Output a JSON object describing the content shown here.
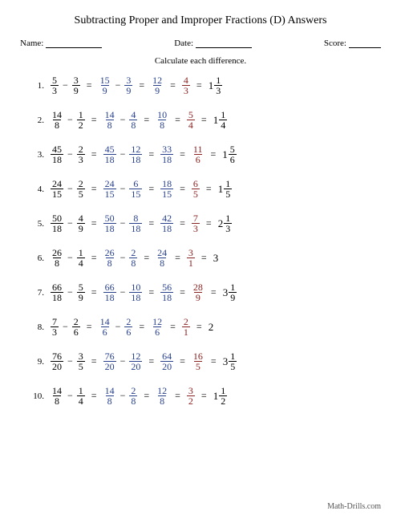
{
  "title": "Subtracting Proper and Improper Fractions (D) Answers",
  "header": {
    "name_label": "Name:",
    "date_label": "Date:",
    "score_label": "Score:"
  },
  "instruction": "Calculate each difference.",
  "footer": "Math-Drills.com",
  "colors": {
    "black": "#000000",
    "blue": "#27408b",
    "red": "#8b2222",
    "background": "#ffffff"
  },
  "problems": [
    {
      "n": "1.",
      "f1": {
        "n": "5",
        "d": "3"
      },
      "f2": {
        "n": "3",
        "d": "9"
      },
      "c1": {
        "n": "15",
        "d": "9"
      },
      "c2": {
        "n": "3",
        "d": "9"
      },
      "diff": {
        "n": "12",
        "d": "9"
      },
      "simp": {
        "n": "4",
        "d": "3"
      },
      "mixed": {
        "w": "1",
        "n": "1",
        "d": "3"
      }
    },
    {
      "n": "2.",
      "f1": {
        "n": "14",
        "d": "8"
      },
      "f2": {
        "n": "1",
        "d": "2"
      },
      "c1": {
        "n": "14",
        "d": "8"
      },
      "c2": {
        "n": "4",
        "d": "8"
      },
      "diff": {
        "n": "10",
        "d": "8"
      },
      "simp": {
        "n": "5",
        "d": "4"
      },
      "mixed": {
        "w": "1",
        "n": "1",
        "d": "4"
      }
    },
    {
      "n": "3.",
      "f1": {
        "n": "45",
        "d": "18"
      },
      "f2": {
        "n": "2",
        "d": "3"
      },
      "c1": {
        "n": "45",
        "d": "18"
      },
      "c2": {
        "n": "12",
        "d": "18"
      },
      "diff": {
        "n": "33",
        "d": "18"
      },
      "simp": {
        "n": "11",
        "d": "6"
      },
      "mixed": {
        "w": "1",
        "n": "5",
        "d": "6"
      }
    },
    {
      "n": "4.",
      "f1": {
        "n": "24",
        "d": "15"
      },
      "f2": {
        "n": "2",
        "d": "5"
      },
      "c1": {
        "n": "24",
        "d": "15"
      },
      "c2": {
        "n": "6",
        "d": "15"
      },
      "diff": {
        "n": "18",
        "d": "15"
      },
      "simp": {
        "n": "6",
        "d": "5"
      },
      "mixed": {
        "w": "1",
        "n": "1",
        "d": "5"
      }
    },
    {
      "n": "5.",
      "f1": {
        "n": "50",
        "d": "18"
      },
      "f2": {
        "n": "4",
        "d": "9"
      },
      "c1": {
        "n": "50",
        "d": "18"
      },
      "c2": {
        "n": "8",
        "d": "18"
      },
      "diff": {
        "n": "42",
        "d": "18"
      },
      "simp": {
        "n": "7",
        "d": "3"
      },
      "mixed": {
        "w": "2",
        "n": "1",
        "d": "3"
      }
    },
    {
      "n": "6.",
      "f1": {
        "n": "26",
        "d": "8"
      },
      "f2": {
        "n": "1",
        "d": "4"
      },
      "c1": {
        "n": "26",
        "d": "8"
      },
      "c2": {
        "n": "2",
        "d": "8"
      },
      "diff": {
        "n": "24",
        "d": "8"
      },
      "simp": {
        "n": "3",
        "d": "1"
      },
      "whole": "3"
    },
    {
      "n": "7.",
      "f1": {
        "n": "66",
        "d": "18"
      },
      "f2": {
        "n": "5",
        "d": "9"
      },
      "c1": {
        "n": "66",
        "d": "18"
      },
      "c2": {
        "n": "10",
        "d": "18"
      },
      "diff": {
        "n": "56",
        "d": "18"
      },
      "simp": {
        "n": "28",
        "d": "9"
      },
      "mixed": {
        "w": "3",
        "n": "1",
        "d": "9"
      }
    },
    {
      "n": "8.",
      "f1": {
        "n": "7",
        "d": "3"
      },
      "f2": {
        "n": "2",
        "d": "6"
      },
      "c1": {
        "n": "14",
        "d": "6"
      },
      "c2": {
        "n": "2",
        "d": "6"
      },
      "diff": {
        "n": "12",
        "d": "6"
      },
      "simp": {
        "n": "2",
        "d": "1"
      },
      "whole": "2"
    },
    {
      "n": "9.",
      "f1": {
        "n": "76",
        "d": "20"
      },
      "f2": {
        "n": "3",
        "d": "5"
      },
      "c1": {
        "n": "76",
        "d": "20"
      },
      "c2": {
        "n": "12",
        "d": "20"
      },
      "diff": {
        "n": "64",
        "d": "20"
      },
      "simp": {
        "n": "16",
        "d": "5"
      },
      "mixed": {
        "w": "3",
        "n": "1",
        "d": "5"
      }
    },
    {
      "n": "10.",
      "f1": {
        "n": "14",
        "d": "8"
      },
      "f2": {
        "n": "1",
        "d": "4"
      },
      "c1": {
        "n": "14",
        "d": "8"
      },
      "c2": {
        "n": "2",
        "d": "8"
      },
      "diff": {
        "n": "12",
        "d": "8"
      },
      "simp": {
        "n": "3",
        "d": "2"
      },
      "mixed": {
        "w": "1",
        "n": "1",
        "d": "2"
      }
    }
  ]
}
